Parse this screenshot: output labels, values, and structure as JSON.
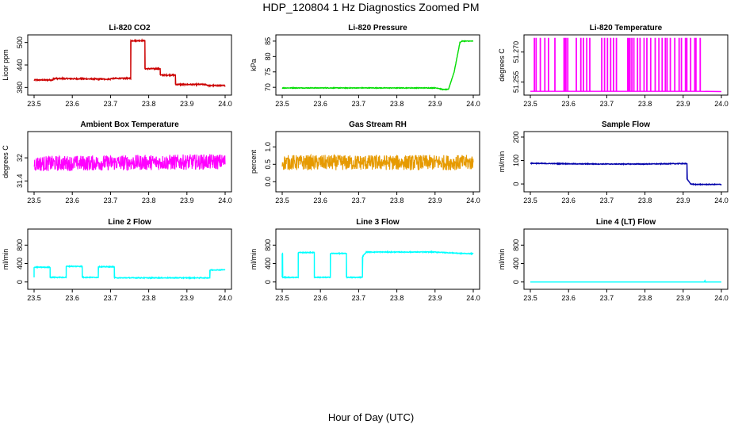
{
  "figure": {
    "title": "HDP_120804  1 Hz Diagnostics Zoomed PM",
    "xlabel": "Hour of Day (UTC)"
  },
  "chart_data": [
    {
      "type": "line",
      "title": "Li-820 CO2",
      "ylabel": "Licor ppm",
      "xlim": [
        23.5,
        24.0
      ],
      "ylim": [
        368,
        512
      ],
      "yticks": [
        380,
        440,
        500
      ],
      "xticks": [
        "23.5",
        "23.6",
        "23.7",
        "23.8",
        "23.9",
        "24.0"
      ],
      "color": "#cc0000",
      "noise": 1.5,
      "series": [
        {
          "x": [
            23.5,
            23.55,
            23.55,
            23.7,
            23.7,
            23.753,
            23.753,
            23.79,
            23.79,
            23.83,
            23.83,
            23.87,
            23.87,
            23.95,
            23.95,
            23.955,
            23.955,
            24.0
          ],
          "y": [
            400,
            400,
            404,
            402,
            404,
            404,
            505,
            505,
            430,
            430,
            413,
            413,
            388,
            388,
            387,
            386,
            385,
            385
          ]
        }
      ]
    },
    {
      "type": "line",
      "title": "Li-820 Pressure",
      "ylabel": "kPa",
      "xlim": [
        23.5,
        24.0
      ],
      "ylim": [
        68.5,
        86
      ],
      "yticks": [
        70,
        75,
        80,
        85
      ],
      "xticks": [
        "23.5",
        "23.6",
        "23.7",
        "23.8",
        "23.9",
        "24.0"
      ],
      "color": "#00dd00",
      "noise": 0.1,
      "series": [
        {
          "x": [
            23.5,
            23.9,
            23.908,
            23.92,
            23.935,
            23.95,
            23.965,
            23.97,
            24.0
          ],
          "y": [
            69.8,
            69.8,
            69.7,
            69.3,
            69.3,
            75,
            84.5,
            85,
            85
          ]
        }
      ]
    },
    {
      "type": "line",
      "title": "Li-820 Temperature",
      "ylabel": "degrees C",
      "xlim": [
        23.5,
        24.0
      ],
      "ylim": [
        51.25,
        51.277
      ],
      "yticks": [
        51.255,
        51.27
      ],
      "ytick_labels": [
        "51.255",
        "51.270"
      ],
      "xticks": [
        "23.5",
        "23.6",
        "23.7",
        "23.8",
        "23.9",
        "24.0"
      ],
      "color": "#ff00ff",
      "series": [
        {
          "x": [
            23.5,
            23.96,
            23.97,
            24.0
          ],
          "y": [
            51.2503,
            51.2503,
            51.2502,
            51.2502
          ]
        }
      ]
    },
    {
      "type": "line",
      "title": "Ambient Box Temperature",
      "ylabel": "degrees C",
      "xlim": [
        23.5,
        24.0
      ],
      "ylim": [
        31.2,
        32.6
      ],
      "yticks": [
        31.4,
        32.0
      ],
      "xticks": [
        "23.5",
        "23.6",
        "23.7",
        "23.8",
        "23.9",
        "24.0"
      ],
      "color": "#ff00ff",
      "noise": 0.2,
      "series": [
        {
          "x": [
            23.5,
            24.0
          ],
          "y": [
            31.85,
            31.9
          ]
        }
      ]
    },
    {
      "type": "line",
      "title": "Gas Stream RH",
      "ylabel": "percent",
      "xlim": [
        23.5,
        24.0
      ],
      "ylim": [
        -0.2,
        1.35
      ],
      "yticks": [
        0.0,
        0.5,
        1.0
      ],
      "ytick_labels": [
        "0.0",
        "0.5",
        "1.0"
      ],
      "xticks": [
        "23.5",
        "23.6",
        "23.7",
        "23.8",
        "23.9",
        "24.0"
      ],
      "color": "#e69a00",
      "noise": 0.22,
      "series": [
        {
          "x": [
            23.5,
            24.0
          ],
          "y": [
            0.55,
            0.55
          ]
        }
      ]
    },
    {
      "type": "line",
      "title": "Sample Flow",
      "ylabel": "ml/min",
      "xlim": [
        23.5,
        24.0
      ],
      "ylim": [
        -20,
        210
      ],
      "yticks": [
        0,
        100,
        200
      ],
      "xticks": [
        "23.5",
        "23.6",
        "23.7",
        "23.8",
        "23.9",
        "24.0"
      ],
      "color": "#0000aa",
      "noise": 1.5,
      "series": [
        {
          "x": [
            23.5,
            23.6,
            23.7,
            23.8,
            23.91,
            23.91,
            23.92,
            23.93,
            24.0
          ],
          "y": [
            88,
            86,
            85,
            85,
            87,
            20,
            0,
            -2,
            -2
          ]
        }
      ]
    },
    {
      "type": "line",
      "title": "Line 2 Flow",
      "ylabel": "ml/min",
      "xlim": [
        23.5,
        24.0
      ],
      "ylim": [
        -90,
        1080
      ],
      "yticks": [
        0,
        400,
        800
      ],
      "xticks": [
        "23.5",
        "23.6",
        "23.7",
        "23.8",
        "23.9",
        "24.0"
      ],
      "color": "#00ffff",
      "noise": 8,
      "series": [
        {
          "x": [
            23.5,
            23.5,
            23.542,
            23.542,
            23.584,
            23.584,
            23.626,
            23.626,
            23.668,
            23.668,
            23.71,
            23.71,
            23.96,
            23.96,
            24.0
          ],
          "y": [
            100,
            320,
            320,
            100,
            100,
            340,
            340,
            100,
            100,
            330,
            330,
            90,
            90,
            260,
            265
          ]
        }
      ]
    },
    {
      "type": "line",
      "title": "Line 3 Flow",
      "ylabel": "ml/min",
      "xlim": [
        23.5,
        24.0
      ],
      "ylim": [
        -90,
        1080
      ],
      "yticks": [
        0,
        400,
        800
      ],
      "xticks": [
        "23.5",
        "23.6",
        "23.7",
        "23.8",
        "23.9",
        "24.0"
      ],
      "color": "#00ffff",
      "noise": 8,
      "series": [
        {
          "x": [
            23.5,
            23.5,
            23.501,
            23.501,
            23.542,
            23.542,
            23.584,
            23.584,
            23.626,
            23.626,
            23.668,
            23.668,
            23.71,
            23.71,
            23.72,
            23.9,
            23.97,
            24.0
          ],
          "y": [
            100,
            620,
            620,
            100,
            100,
            640,
            640,
            100,
            100,
            620,
            620,
            100,
            100,
            550,
            650,
            650,
            620,
            615
          ]
        }
      ]
    },
    {
      "type": "line",
      "title": "Line 4 (LT) Flow",
      "ylabel": "ml/min",
      "xlim": [
        23.5,
        24.0
      ],
      "ylim": [
        -90,
        1080
      ],
      "yticks": [
        0,
        400,
        800
      ],
      "xticks": [
        "23.5",
        "23.6",
        "23.7",
        "23.8",
        "23.9",
        "24.0"
      ],
      "color": "#00ffff",
      "noise": 0,
      "series": [
        {
          "x": [
            23.5,
            23.955,
            23.957,
            23.959,
            23.961,
            24.0
          ],
          "y": [
            0,
            0,
            30,
            -5,
            0,
            0
          ]
        }
      ]
    }
  ]
}
